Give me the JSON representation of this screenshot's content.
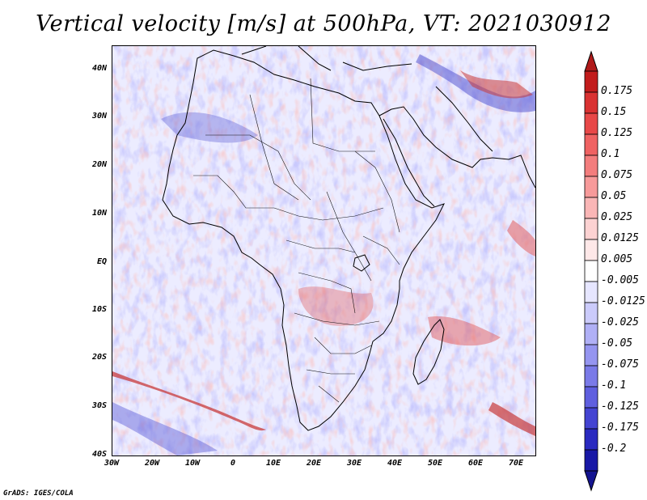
{
  "title": "Vertical velocity [m/s] at 500hPa, VT: 2021030912",
  "footer": "GrADS: IGES/COLA",
  "lat_labels": [
    "40N",
    "30N",
    "20N",
    "10N",
    "EQ",
    "10S",
    "20S",
    "30S",
    "40S"
  ],
  "lon_labels": [
    "30W",
    "20W",
    "10W",
    "0",
    "10E",
    "20E",
    "30E",
    "40E",
    "50E",
    "60E",
    "70E"
  ],
  "colorbar": {
    "labels": [
      "0.175",
      "0.15",
      "0.125",
      "0.1",
      "0.075",
      "0.05",
      "0.025",
      "0.0125",
      "0.005",
      "-0.005",
      "-0.0125",
      "-0.025",
      "-0.05",
      "-0.075",
      "-0.1",
      "-0.125",
      "-0.175",
      "-0.2"
    ],
    "colors": [
      "#c21c1c",
      "#d93232",
      "#e84848",
      "#ef6262",
      "#f37d7d",
      "#f79a9a",
      "#fab6b6",
      "#fcd2d2",
      "#fee8e8",
      "#ffffff",
      "#e6e6ff",
      "#cbcbfb",
      "#b0b0f6",
      "#9595f0",
      "#7a7ae8",
      "#5f5fdf",
      "#4444d2",
      "#2a2ac0",
      "#1818a6"
    ],
    "top_color": "#b01a1a",
    "bottom_color": "#141490"
  },
  "map_colors": {
    "background": "#ececff",
    "ocean_noise": "#d8d8ff",
    "ascent": "#f2a0a0",
    "strong_ascent": "#d24040",
    "descent": "#9c9cf2",
    "strong_descent": "#4a4ad8",
    "coast": "#000000"
  }
}
